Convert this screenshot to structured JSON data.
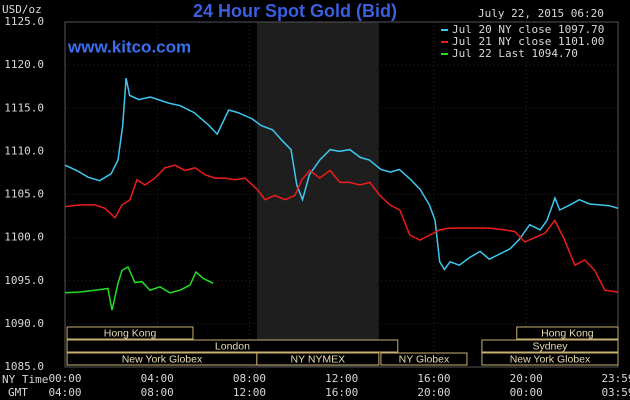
{
  "chart_data": {
    "type": "line",
    "title": "24 Hour Spot Gold (Bid)",
    "watermark": "www.kitco.com",
    "timestamp": "July 22, 2015 06:20",
    "y_label": "USD/oz",
    "x_row_labels": [
      "NY Time",
      "GMT"
    ],
    "xlim": [
      0,
      23.98
    ],
    "xticks": [
      {
        "value": 0,
        "label": "00:00"
      },
      {
        "value": 4,
        "label": "04:00"
      },
      {
        "value": 8,
        "label": "08:00"
      },
      {
        "value": 12,
        "label": "12:00"
      },
      {
        "value": 16,
        "label": "16:00"
      },
      {
        "value": 20,
        "label": "20:00"
      },
      {
        "value": 23.98,
        "label": "23:59"
      }
    ],
    "gmt_labels": [
      "04:00",
      "08:00",
      "12:00",
      "16:00",
      "20:00",
      "00:00",
      "03:59"
    ],
    "ylim": [
      1085,
      1125
    ],
    "yticks": [
      {
        "value": 1085,
        "label": "1085.0"
      },
      {
        "value": 1090,
        "label": "1090.0"
      },
      {
        "value": 1095,
        "label": "1095.0"
      },
      {
        "value": 1100,
        "label": "1100.0"
      },
      {
        "value": 1105,
        "label": "1105.0"
      },
      {
        "value": 1110,
        "label": "1110.0"
      },
      {
        "value": 1115,
        "label": "1115.0"
      },
      {
        "value": 1120,
        "label": "1120.0"
      },
      {
        "value": 1125,
        "label": "1125.0"
      }
    ],
    "grid": true,
    "shade": [
      8.32,
      13.61
    ],
    "sessions": [
      [
        {
          "label": "Hong Kong",
          "start": 0.09,
          "end": 5.55
        },
        {
          "label": "Hong Kong",
          "start": 19.59,
          "end": 23.98
        }
      ],
      [
        {
          "label": "London",
          "start": 0.09,
          "end": 14.43
        },
        {
          "label": "Sydney",
          "start": 18.08,
          "end": 23.98
        }
      ],
      [
        {
          "label": "New York Globex",
          "start": 0.09,
          "end": 8.32
        },
        {
          "label": "NY NYMEX",
          "start": 8.32,
          "end": 13.61
        },
        {
          "label": "NY Globex",
          "start": 13.7,
          "end": 17.43
        },
        {
          "label": "New York Globex",
          "start": 18.08,
          "end": 23.98
        }
      ]
    ],
    "series": [
      {
        "name": "Jul 20 NY close 1097.70",
        "color": "#3ec8f0",
        "x": [
          0,
          0.5,
          1,
          1.5,
          2,
          2.3,
          2.5,
          2.65,
          2.8,
          3.2,
          3.7,
          4.5,
          5,
          5.6,
          6.2,
          6.6,
          7.1,
          7.5,
          8.1,
          8.5,
          9,
          9.4,
          9.8,
          10.05,
          10.3,
          10.6,
          11.05,
          11.5,
          11.9,
          12.35,
          12.8,
          13.2,
          13.7,
          14.1,
          14.5,
          15,
          15.4,
          15.8,
          16.05,
          16.25,
          16.45,
          16.7,
          17.1,
          17.55,
          18,
          18.4,
          18.85,
          19.3,
          19.7,
          20.15,
          20.6,
          20.9,
          21.25,
          21.45,
          21.9,
          22.3,
          22.75,
          23.2,
          23.6,
          23.98
        ],
        "values": [
          1108.4,
          1107.8,
          1107.0,
          1106.6,
          1107.4,
          1109.0,
          1113.0,
          1118.5,
          1116.5,
          1116.0,
          1116.3,
          1115.6,
          1115.3,
          1114.5,
          1113.1,
          1112.0,
          1114.8,
          1114.5,
          1113.8,
          1113.0,
          1112.5,
          1111.3,
          1110.2,
          1106.1,
          1104.4,
          1107.3,
          1109.0,
          1110.2,
          1110.0,
          1110.2,
          1109.3,
          1109.0,
          1107.9,
          1107.6,
          1107.9,
          1106.7,
          1105.6,
          1103.8,
          1102.0,
          1097.2,
          1096.3,
          1097.2,
          1096.8,
          1097.7,
          1098.4,
          1097.5,
          1098.1,
          1098.7,
          1099.8,
          1101.5,
          1100.9,
          1102.0,
          1104.6,
          1103.2,
          1103.8,
          1104.4,
          1103.9,
          1103.8,
          1103.7,
          1103.4
        ]
      },
      {
        "name": "Jul 21 NY close 1101.00",
        "color": "#ee1c1c",
        "x": [
          0,
          0.65,
          1.3,
          1.73,
          2.17,
          2.47,
          2.82,
          3.12,
          3.47,
          3.9,
          4.33,
          4.77,
          5.2,
          5.64,
          6.07,
          6.5,
          6.94,
          7.37,
          7.8,
          8.37,
          8.67,
          9.1,
          9.54,
          9.97,
          10.27,
          10.62,
          11.05,
          11.49,
          11.92,
          12.35,
          12.79,
          13.22,
          13.65,
          14.09,
          14.52,
          14.95,
          15.39,
          15.82,
          16.25,
          16.69,
          17.56,
          18.42,
          19.07,
          19.51,
          19.94,
          20.37,
          20.81,
          21.24,
          21.67,
          22.11,
          22.54,
          22.97,
          23.41,
          23.98
        ],
        "values": [
          1103.6,
          1103.8,
          1103.8,
          1103.4,
          1102.3,
          1103.8,
          1104.4,
          1106.7,
          1106.1,
          1106.9,
          1108.1,
          1108.4,
          1107.8,
          1108.1,
          1107.3,
          1106.9,
          1106.9,
          1106.7,
          1106.9,
          1105.5,
          1104.4,
          1104.9,
          1104.4,
          1104.9,
          1106.7,
          1107.8,
          1106.9,
          1107.8,
          1106.4,
          1106.4,
          1106.1,
          1106.4,
          1104.9,
          1103.8,
          1103.2,
          1100.3,
          1099.7,
          1100.3,
          1100.9,
          1101.1,
          1101.1,
          1101.1,
          1100.9,
          1100.7,
          1099.5,
          1100.0,
          1100.5,
          1102.0,
          1099.7,
          1096.8,
          1097.4,
          1096.2,
          1093.9,
          1093.7
        ]
      },
      {
        "name": "Jul 22 Last 1094.70",
        "color": "#22dd22",
        "x": [
          0,
          0.65,
          1.3,
          1.86,
          2.04,
          2.3,
          2.47,
          2.73,
          3.03,
          3.34,
          3.68,
          4.12,
          4.55,
          4.99,
          5.42,
          5.68,
          5.98,
          6.42
        ],
        "values": [
          1093.6,
          1093.7,
          1093.9,
          1094.1,
          1091.6,
          1094.7,
          1096.2,
          1096.6,
          1094.8,
          1094.9,
          1093.9,
          1094.3,
          1093.6,
          1093.9,
          1094.5,
          1096.0,
          1095.3,
          1094.7
        ]
      }
    ]
  }
}
